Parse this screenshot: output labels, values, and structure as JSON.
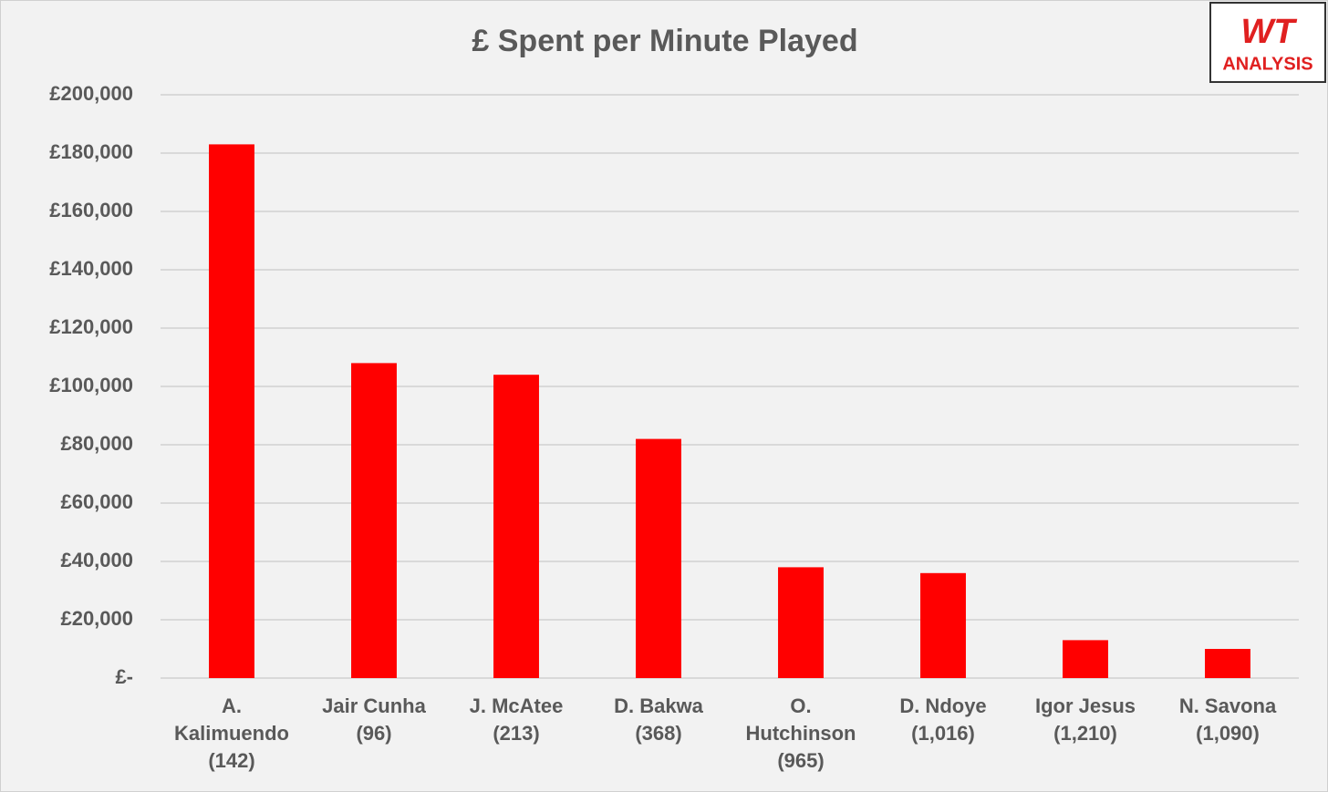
{
  "chart_data": {
    "type": "bar",
    "title": "£ Spent per Minute Played",
    "categories": [
      "A. Kalimuendo (142)",
      "Jair Cunha (96)",
      "J. McAtee (213)",
      "D. Bakwa (368)",
      "O. Hutchinson (965)",
      "D. Ndoye (1,016)",
      "Igor Jesus (1,210)",
      "N. Savona (1,090)"
    ],
    "values": [
      183000,
      108000,
      104000,
      82000,
      38000,
      36000,
      13000,
      10000
    ],
    "color": "#ff0000",
    "ylim": [
      0,
      200000
    ],
    "yticks": [
      {
        "value": 0,
        "label": "£-"
      },
      {
        "value": 20000,
        "label": "£20,000"
      },
      {
        "value": 40000,
        "label": "£40,000"
      },
      {
        "value": 60000,
        "label": "£60,000"
      },
      {
        "value": 80000,
        "label": "£80,000"
      },
      {
        "value": 100000,
        "label": "£100,000"
      },
      {
        "value": 120000,
        "label": "£120,000"
      },
      {
        "value": 140000,
        "label": "£140,000"
      },
      {
        "value": 160000,
        "label": "£160,000"
      },
      {
        "value": 180000,
        "label": "£180,000"
      },
      {
        "value": 200000,
        "label": "£200,000"
      }
    ],
    "grid": true
  },
  "logo": {
    "top": "WT",
    "bottom": "ANALYSIS"
  }
}
